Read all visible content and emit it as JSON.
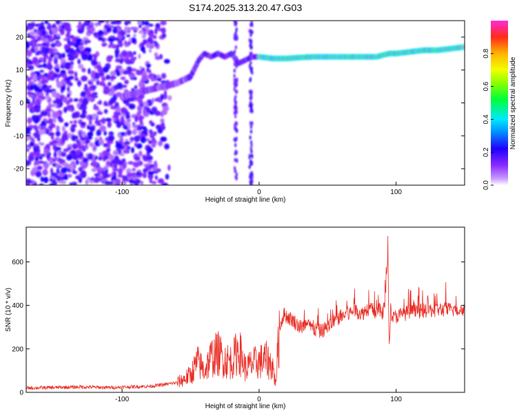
{
  "chart_data": [
    {
      "type": "heatmap",
      "title": "S174.2025.313.20.47.G03",
      "xlabel": "Height of straight line (km)",
      "ylabel": "Frequency (Hz)",
      "xlim": [
        -170,
        150
      ],
      "ylim": [
        -25,
        25
      ],
      "x_ticks": [
        "-100",
        "0",
        "100"
      ],
      "x_tick_values": [
        -100,
        0,
        100
      ],
      "y_ticks": [
        "-20",
        "-10",
        "0",
        "10",
        "20"
      ],
      "y_tick_values": [
        -20,
        -10,
        0,
        10,
        20
      ],
      "colorbar": {
        "label": "Normalized spectral amplitude",
        "ticks": [
          "0.0",
          "0.2",
          "0.4",
          "0.6",
          "0.8"
        ],
        "tick_values": [
          0.0,
          0.2,
          0.4,
          0.6,
          0.8
        ],
        "range": [
          0,
          1
        ]
      },
      "series": [
        {
          "x": [
            -100,
            -90,
            -80,
            -70,
            -60,
            -50,
            -44,
            -40,
            -35,
            -30,
            -25,
            -20,
            -15,
            -10,
            -5,
            0,
            10,
            20,
            30,
            40,
            50,
            60,
            70,
            80,
            86,
            90,
            95,
            100,
            110,
            120,
            130,
            140,
            150
          ],
          "values": [
            2,
            3,
            4,
            5,
            6,
            8,
            13,
            15,
            14,
            15,
            14,
            15,
            12,
            13,
            14,
            14,
            13.5,
            13.5,
            13.8,
            14,
            14,
            14,
            14,
            14,
            14,
            14.5,
            15,
            15,
            15.5,
            16,
            16,
            16.5,
            17
          ]
        }
      ]
    },
    {
      "type": "line",
      "xlabel": "Height of straight line (km)",
      "ylabel": "SNR (10 * v/v)",
      "xlim": [
        -170,
        150
      ],
      "ylim": [
        0,
        760
      ],
      "x_ticks": [
        "-100",
        "0",
        "100"
      ],
      "x_tick_values": [
        -100,
        0,
        100
      ],
      "y_ticks": [
        "0",
        "200",
        "400",
        "600"
      ],
      "y_tick_values": [
        0,
        200,
        400,
        600
      ],
      "series": [
        {
          "color": "#e8261e",
          "x": [
            -170,
            -150,
            -130,
            -110,
            -100,
            -90,
            -80,
            -70,
            -60,
            -55,
            -50,
            -45,
            -40,
            -35,
            -30,
            -25,
            -20,
            -15,
            -10,
            -5,
            0,
            5,
            10,
            12,
            15,
            18,
            20,
            25,
            30,
            35,
            40,
            45,
            50,
            55,
            60,
            65,
            70,
            75,
            80,
            85,
            88,
            90,
            92,
            94,
            95,
            96,
            98,
            100,
            105,
            110,
            120,
            130,
            140,
            150
          ],
          "values": [
            20,
            22,
            25,
            22,
            24,
            26,
            28,
            35,
            45,
            60,
            80,
            140,
            100,
            160,
            180,
            150,
            140,
            200,
            110,
            130,
            140,
            150,
            120,
            40,
            300,
            360,
            350,
            330,
            300,
            310,
            290,
            280,
            300,
            330,
            350,
            360,
            380,
            360,
            390,
            370,
            380,
            350,
            420,
            650,
            200,
            380,
            340,
            350,
            360,
            370,
            375,
            380,
            380,
            380
          ]
        }
      ]
    }
  ]
}
